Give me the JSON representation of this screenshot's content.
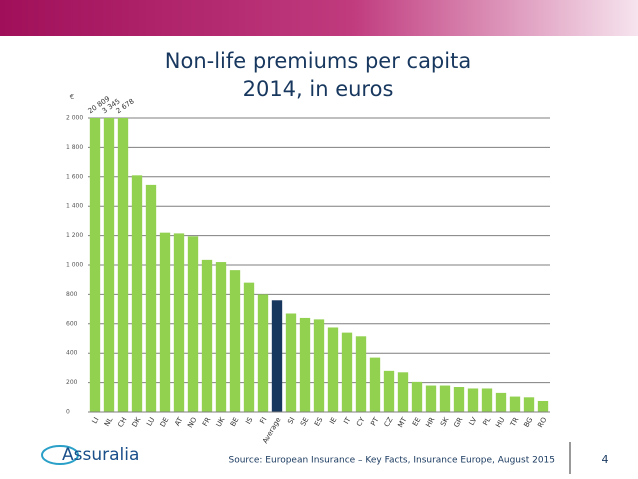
{
  "chart_data": {
    "type": "bar",
    "title": "Non-life premiums per capita",
    "subtitle": "2014, in euros",
    "y_label": "€",
    "categories": [
      "LI",
      "NL",
      "CH",
      "DK",
      "LU",
      "DE",
      "AT",
      "NO",
      "FR",
      "UK",
      "BE",
      "IS",
      "FI",
      "Average",
      "SI",
      "SE",
      "ES",
      "IE",
      "IT",
      "CY",
      "PT",
      "CZ",
      "MT",
      "EE",
      "HR",
      "SK",
      "GR",
      "LV",
      "PL",
      "HU",
      "TR",
      "BG",
      "RO"
    ],
    "values": [
      20809,
      3345,
      2678,
      1610,
      1545,
      1220,
      1215,
      1195,
      1035,
      1020,
      965,
      880,
      800,
      760,
      670,
      640,
      630,
      575,
      540,
      515,
      370,
      280,
      270,
      205,
      180,
      180,
      170,
      160,
      160,
      130,
      105,
      100,
      75
    ],
    "value_labels": [
      "20 809",
      "3 345",
      "2 678",
      null,
      null,
      null,
      null,
      null,
      null,
      null,
      null,
      null,
      null,
      null,
      null,
      null,
      null,
      null,
      null,
      null,
      null,
      null,
      null,
      null,
      null,
      null,
      null,
      null,
      null,
      null,
      null,
      null,
      null
    ],
    "color": "#92d050",
    "highlight": {
      "category": "Average",
      "color": "#17375e"
    },
    "ylim": [
      0,
      2000
    ],
    "yticks": [
      0,
      200,
      400,
      600,
      800,
      {
        "value": 1000,
        "label": "1 000"
      },
      {
        "value": 1200,
        "label": "1 200"
      },
      {
        "value": 1400,
        "label": "1 400"
      },
      {
        "value": 1600,
        "label": "1 600"
      },
      {
        "value": 1800,
        "label": "1 800"
      },
      {
        "value": 2000,
        "label": "2 000"
      }
    ],
    "grid": true
  },
  "footer": {
    "logo": "Assuralia",
    "source": "Source: European Insurance – Key Facts, Insurance Europe, August 2015",
    "page": "4"
  }
}
